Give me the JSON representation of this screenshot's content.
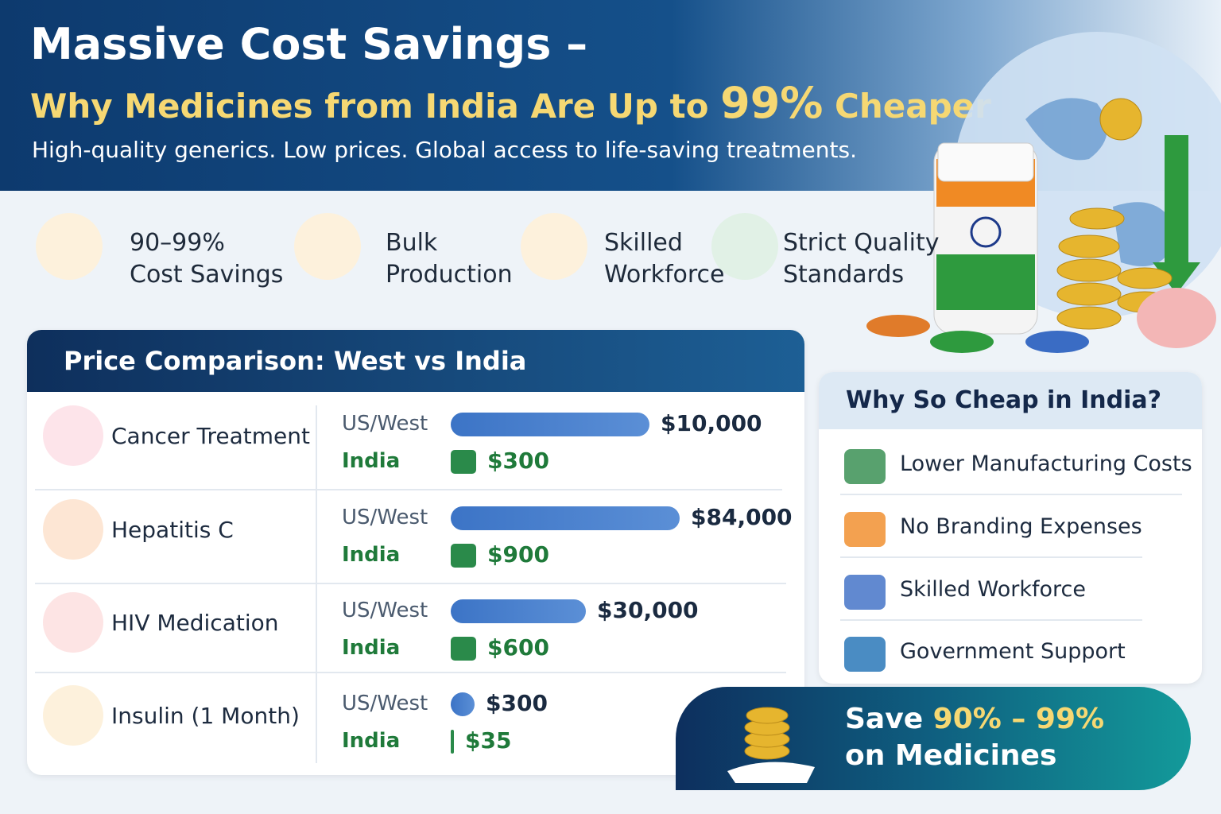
{
  "header": {
    "title": "Massive Cost Savings –",
    "subtitle_start": "Why Medicines from India Are Up to",
    "subtitle_highlight": "99%",
    "subtitle_end": "Cheaper",
    "tagline": "High-quality generics. Low prices. Global access to life-saving treatments."
  },
  "features": [
    {
      "line1": "90–99%",
      "line2": "Cost Savings"
    },
    {
      "line1": "Bulk",
      "line2": "Production"
    },
    {
      "line1": "Skilled",
      "line2": "Workforce"
    },
    {
      "line1": "Strict Quality",
      "line2": "Standards"
    }
  ],
  "comparison": {
    "title": "Price Comparison: West vs India",
    "rows": [
      {
        "name": "Cancer Treatment",
        "west_label": "US/West",
        "west_price": "$10,000",
        "india_label": "India",
        "india_price": "$300"
      },
      {
        "name": "Hepatitis C",
        "west_label": "US/West",
        "west_price": "$84,000",
        "india_label": "India",
        "india_price": "$900"
      },
      {
        "name": "HIV Medication",
        "west_label": "US/West",
        "west_price": "$30,000",
        "india_label": "India",
        "india_price": "$600"
      },
      {
        "name": "Insulin (1 Month)",
        "west_label": "US/West",
        "west_price": "$300",
        "india_label": "India",
        "india_price": "$35"
      }
    ]
  },
  "why": {
    "title": "Why So Cheap in India?",
    "items": [
      "Lower Manufacturing Costs",
      "No Branding Expenses",
      "Skilled Workforce",
      "Government Support"
    ]
  },
  "banner": {
    "prefix": "Save",
    "highlight": "90% – 99%",
    "line2": "on Medicines"
  }
}
